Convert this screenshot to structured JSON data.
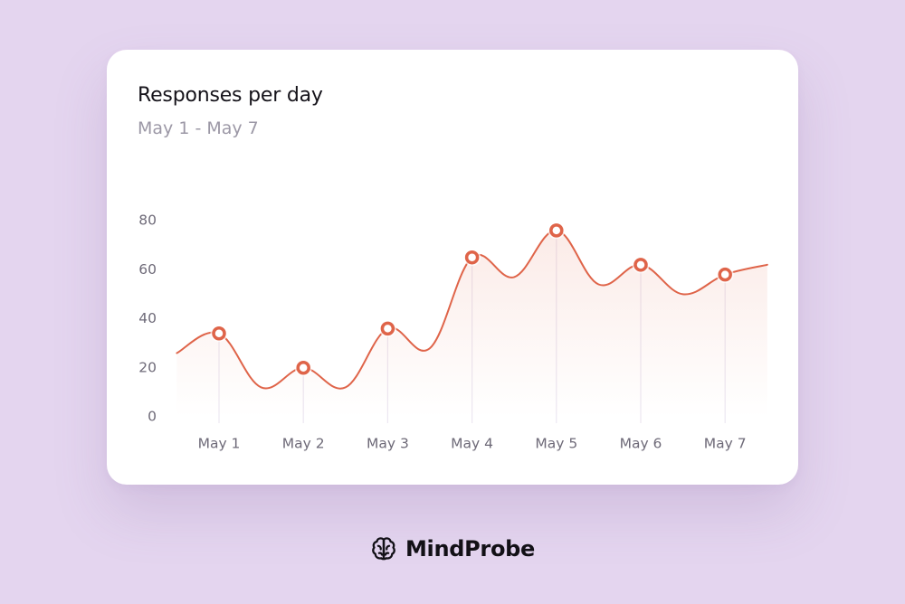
{
  "card": {
    "title": "Responses per day",
    "subtitle": "May 1 - May 7"
  },
  "chart_data": {
    "type": "line",
    "title": "Responses per day",
    "subtitle": "May 1 - May 7",
    "xlabel": "",
    "ylabel": "",
    "categories": [
      "May 1",
      "May 2",
      "May 3",
      "May 4",
      "May 5",
      "May 6",
      "May 7"
    ],
    "y_ticks": [
      "0",
      "20",
      "40",
      "60",
      "80"
    ],
    "ylim": [
      0,
      80
    ],
    "series": [
      {
        "values": [
          34,
          20,
          36,
          65,
          76,
          62,
          58
        ]
      }
    ],
    "marker_style": "hollow circle",
    "smooth": true,
    "area_fill": true,
    "grid": false,
    "legend": "none",
    "colors": {
      "line": "#df6449",
      "marker_fill": "#ffffff",
      "drop_line": "#ece7f1",
      "tick_text": "#6e6a78"
    }
  },
  "brand": {
    "name": "MindProbe",
    "icon": "brain-icon"
  },
  "colors": {
    "background": "#e4d5ef",
    "card": "#ffffff",
    "title": "#15131a",
    "subtitle": "#9c98a6"
  }
}
